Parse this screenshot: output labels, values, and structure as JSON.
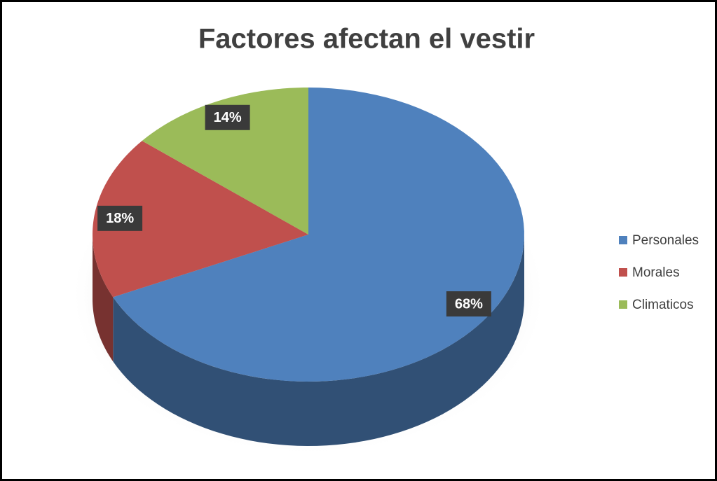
{
  "chart_data": {
    "type": "pie",
    "title": "Factores afectan el vestir",
    "categories": [
      "Personales",
      "Morales",
      "Climaticos"
    ],
    "values": [
      68,
      18,
      14
    ],
    "value_labels": [
      "68%",
      "18%",
      "14%"
    ],
    "colors": [
      "#4f81bd",
      "#c0504d",
      "#9bbb59"
    ],
    "legend": "right"
  }
}
